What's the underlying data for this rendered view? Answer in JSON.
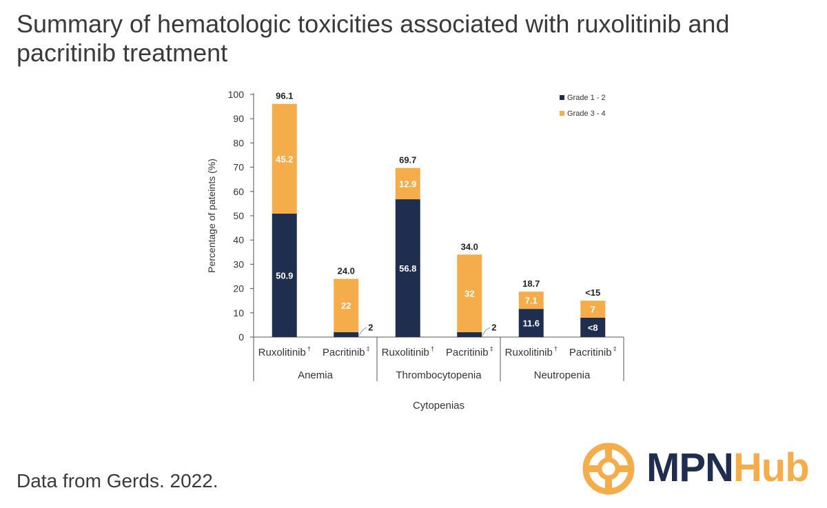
{
  "title": "Summary of hematologic toxicities associated with ruxolitinib and pacritinib treatment",
  "footer": "Data from Gerds. 2022.",
  "logo": {
    "part1": "MPN",
    "part2": "Hub",
    "icon": "lifebuoy-icon"
  },
  "colors": {
    "grade12": "#1f2d4f",
    "grade34": "#f5ad4b",
    "axis": "#555555"
  },
  "chart_data": {
    "type": "bar",
    "stacked": true,
    "ylabel": "Percentage of pateints (%)",
    "xlabel": "Cytopenias",
    "ylim": [
      0,
      100
    ],
    "yticks": [
      0,
      10,
      20,
      30,
      40,
      50,
      60,
      70,
      80,
      90,
      100
    ],
    "grid": false,
    "legend_position": "top-right",
    "groups": [
      "Anemia",
      "Thrombocytopenia",
      "Neutropenia"
    ],
    "categories": [
      {
        "label": "Ruxolitinib",
        "mark": "†",
        "group": "Anemia"
      },
      {
        "label": "Pacritinib",
        "mark": "‡",
        "group": "Anemia"
      },
      {
        "label": "Ruxolitinib",
        "mark": "†",
        "group": "Thrombocytopenia"
      },
      {
        "label": "Pacritinib",
        "mark": "‡",
        "group": "Thrombocytopenia"
      },
      {
        "label": "Ruxolitinib",
        "mark": "†",
        "group": "Neutropenia"
      },
      {
        "label": "Pacritinib",
        "mark": "‡",
        "group": "Neutropenia"
      }
    ],
    "series": [
      {
        "name": "Grade 1 - 2",
        "values": [
          50.9,
          2,
          56.8,
          2,
          11.6,
          8
        ],
        "labels": [
          "50.9",
          "2",
          "56.8",
          "2",
          "11.6",
          "<8"
        ]
      },
      {
        "name": "Grade 3 - 4",
        "values": [
          45.2,
          22,
          12.9,
          32,
          7.1,
          7
        ],
        "labels": [
          "45.2",
          "22",
          "12.9",
          "32",
          "7.1",
          "7"
        ]
      }
    ],
    "totals": [
      "96.1",
      "24.0",
      "69.7",
      "34.0",
      "18.7",
      "<15"
    ]
  }
}
